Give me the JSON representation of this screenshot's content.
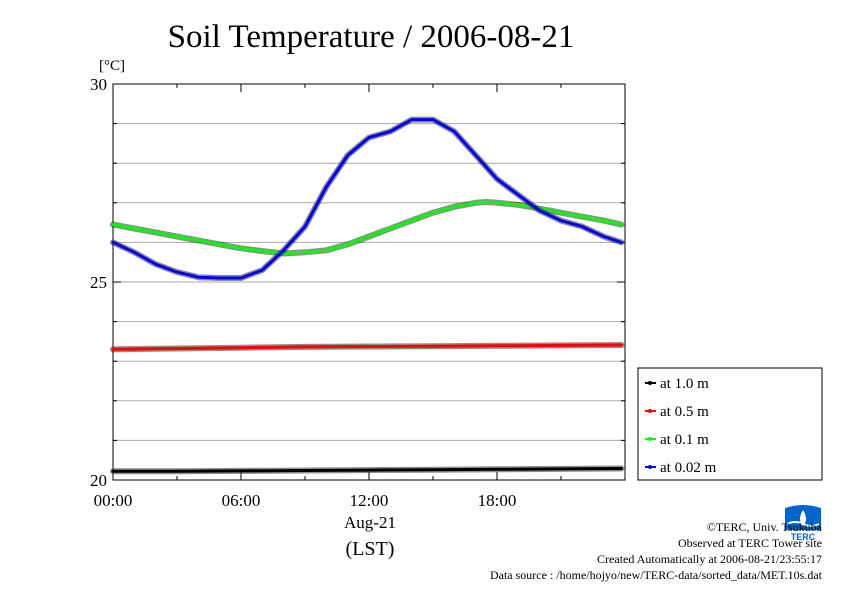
{
  "chart_data": {
    "type": "line",
    "title": "Soil Temperature / 2006-08-21",
    "ylabel": "[°C]",
    "xlabel": "Aug-21",
    "xlabel2": "(LST)",
    "xlim": [
      0,
      24
    ],
    "ylim": [
      20,
      30
    ],
    "yticks": [
      20,
      25,
      30
    ],
    "xticks": [
      {
        "value": 0,
        "label": "00:00"
      },
      {
        "value": 6,
        "label": "06:00"
      },
      {
        "value": 12,
        "label": "12:00"
      },
      {
        "value": 18,
        "label": "18:00"
      }
    ],
    "grid": true,
    "legend_placement": "right",
    "series": [
      {
        "name": "at 1.0 m",
        "color": "#000000",
        "x": [
          0,
          3,
          6,
          9,
          12,
          15,
          18,
          21,
          23.83
        ],
        "y": [
          20.22,
          20.22,
          20.23,
          20.24,
          20.25,
          20.26,
          20.27,
          20.28,
          20.29
        ]
      },
      {
        "name": "at 0.5 m",
        "color": "#ff0000",
        "x": [
          0,
          3,
          6,
          9,
          12,
          15,
          18,
          21,
          23.83
        ],
        "y": [
          23.3,
          23.32,
          23.34,
          23.36,
          23.37,
          23.38,
          23.39,
          23.4,
          23.41
        ]
      },
      {
        "name": "at 0.1 m",
        "color": "#00ff00",
        "x": [
          0,
          1,
          2,
          3,
          4,
          5,
          6,
          7,
          8,
          9,
          10,
          11,
          12,
          13,
          14,
          15,
          16,
          17,
          17.5,
          18,
          19,
          20,
          21,
          22,
          23,
          23.83
        ],
        "y": [
          26.45,
          26.35,
          26.25,
          26.15,
          26.05,
          25.95,
          25.85,
          25.78,
          25.72,
          25.75,
          25.8,
          25.95,
          26.15,
          26.35,
          26.55,
          26.75,
          26.9,
          27.0,
          27.02,
          27.0,
          26.95,
          26.85,
          26.75,
          26.65,
          26.55,
          26.45
        ]
      },
      {
        "name": "at 0.02 m",
        "color": "#0000ff",
        "x": [
          0,
          1,
          2,
          3,
          4,
          5,
          6,
          7,
          8,
          9,
          10,
          11,
          12,
          13,
          14,
          15,
          16,
          17,
          18,
          19,
          20,
          21,
          22,
          23,
          23.83
        ],
        "y": [
          26.0,
          25.75,
          25.45,
          25.25,
          25.12,
          25.1,
          25.1,
          25.3,
          25.8,
          26.4,
          27.4,
          28.2,
          28.65,
          28.8,
          29.1,
          29.1,
          28.8,
          28.2,
          27.6,
          27.2,
          26.8,
          26.55,
          26.4,
          26.15,
          26.0
        ]
      }
    ]
  },
  "footer": {
    "copyright": "©TERC, Univ. Tsukuba",
    "observed": "Observed at TERC Tower site",
    "created": "Created Automatically at 2006-08-21/23:55:17",
    "source": "Data source : /home/hojyo/new/TERC-data/sorted_data/MET.10s.dat"
  },
  "logo": {
    "text": "TERC",
    "color": "#0066cc"
  }
}
